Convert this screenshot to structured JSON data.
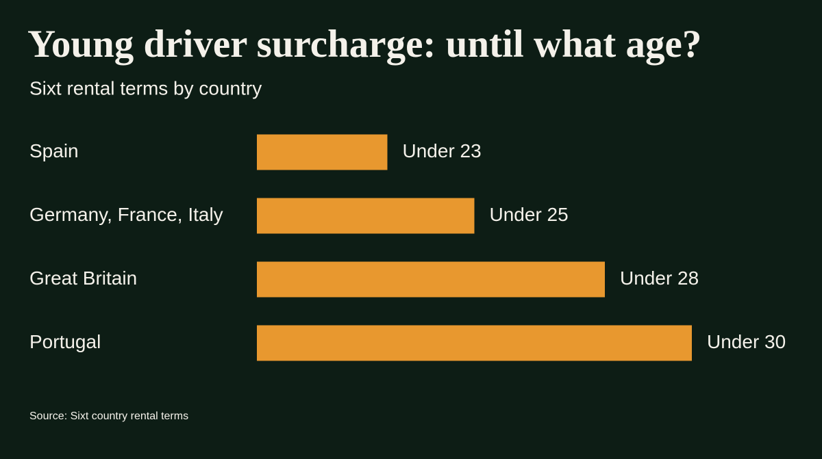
{
  "chart_data": {
    "type": "bar",
    "orientation": "horizontal",
    "title": "Young driver surcharge: until what age?",
    "subtitle": "Sixt rental terms by country",
    "categories": [
      "Spain",
      "Germany, France, Italy",
      "Great Britain",
      "Portugal"
    ],
    "values": [
      23,
      25,
      28,
      30
    ],
    "value_labels": [
      "Under 23",
      "Under 25",
      "Under 28",
      "Under 30"
    ],
    "color": "#e8982f",
    "xlim": [
      20,
      30
    ],
    "source": "Source: Sixt country rental terms"
  }
}
